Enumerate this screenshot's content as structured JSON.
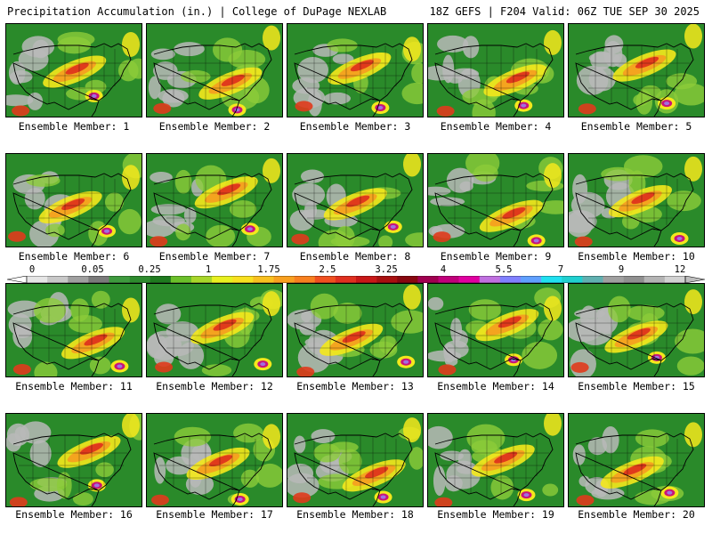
{
  "header": {
    "left": "Precipitation Accumulation (in.) | College of DuPage NEXLAB",
    "right": "18Z GEFS | F204 Valid: 06Z TUE SEP 30 2025"
  },
  "colorbar": {
    "labels": [
      "0",
      "0.05",
      "0.25",
      "1",
      "1.75",
      "2.5",
      "3.25",
      "4",
      "5.5",
      "7",
      "9",
      "12"
    ],
    "colors": [
      "#e6e6e6",
      "#c8c8c8",
      "#a0a0a0",
      "#7a7a7a",
      "#3e9a3e",
      "#2e8b2e",
      "#1f7a1f",
      "#6bbf2a",
      "#a8d62a",
      "#e8f020",
      "#f8e020",
      "#f8c020",
      "#f8a020",
      "#f88020",
      "#f05020",
      "#e03020",
      "#c81818",
      "#a81010",
      "#880810",
      "#a00050",
      "#c0007a",
      "#e000a0",
      "#c070e0",
      "#8080ff",
      "#60a0ff",
      "#20e0f0",
      "#20d0d0",
      "#60b0b0",
      "#a0a0a0",
      "#909090",
      "#b4b4b4",
      "#d2d2d2"
    ],
    "palette": {
      "land": "#2a8a2a",
      "dry_gray": "#b8b8b8",
      "light_green": "#8ccc3a",
      "yellow": "#f4e81c",
      "orange": "#f4a020",
      "red": "#e03a1c",
      "magenta": "#c8147a",
      "purple": "#a070e0",
      "border": "#000000"
    }
  },
  "members": [
    {
      "label": "Ensemble Member: 1"
    },
    {
      "label": "Ensemble Member: 2"
    },
    {
      "label": "Ensemble Member: 3"
    },
    {
      "label": "Ensemble Member: 4"
    },
    {
      "label": "Ensemble Member: 5"
    },
    {
      "label": "Ensemble Member: 6"
    },
    {
      "label": "Ensemble Member: 7"
    },
    {
      "label": "Ensemble Member: 8"
    },
    {
      "label": "Ensemble Member: 9"
    },
    {
      "label": "Ensemble Member: 10"
    },
    {
      "label": "Ensemble Member: 11"
    },
    {
      "label": "Ensemble Member: 12"
    },
    {
      "label": "Ensemble Member: 13"
    },
    {
      "label": "Ensemble Member: 14"
    },
    {
      "label": "Ensemble Member: 15"
    },
    {
      "label": "Ensemble Member: 16"
    },
    {
      "label": "Ensemble Member: 17"
    },
    {
      "label": "Ensemble Member: 18"
    },
    {
      "label": "Ensemble Member: 19"
    },
    {
      "label": "Ensemble Member: 20"
    }
  ]
}
